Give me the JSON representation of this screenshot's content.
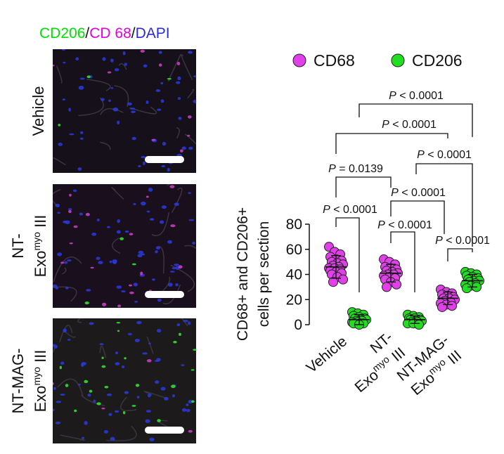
{
  "panel_title": {
    "cd206": "CD206",
    "slash1": "/",
    "cd68": "CD 68",
    "slash2": "/",
    "dapi": "DAPI"
  },
  "colors": {
    "cd206": "#00e000",
    "cd68": "#e000e0",
    "dapi": "#2a2ad8",
    "cd68_marker": "#e040e8",
    "cd206_marker": "#22dd22"
  },
  "images": [
    {
      "label_lines": [
        "Vehicle"
      ]
    },
    {
      "label_lines": [
        "NT-",
        "Exo",
        "myo",
        " III"
      ]
    },
    {
      "label_lines": [
        "NT-MAG-",
        "Exo",
        "myo",
        " III"
      ]
    }
  ],
  "chart_data": {
    "type": "scatter",
    "ylabel": [
      "CD68+ and CD206+",
      "cells per section"
    ],
    "ylim": [
      0,
      80
    ],
    "yticks": [
      0,
      20,
      40,
      60,
      80
    ],
    "categories": [
      {
        "lines": [
          "Vehicle"
        ]
      },
      {
        "lines": [
          "NT-",
          "Exo",
          "myo",
          " III"
        ]
      },
      {
        "lines": [
          "NT-MAG-",
          "Exo",
          "myo",
          " III"
        ]
      }
    ],
    "legend": [
      "CD68",
      "CD206"
    ],
    "series": [
      {
        "name": "CD68",
        "means": [
          46,
          41,
          21
        ],
        "sds": [
          9,
          7,
          5
        ],
        "values": [
          [
            62,
            58,
            56,
            54,
            52,
            51,
            50,
            49,
            48,
            47,
            46,
            45,
            45,
            44,
            43,
            42,
            41,
            40,
            38,
            36,
            34
          ],
          [
            52,
            50,
            48,
            46,
            45,
            44,
            43,
            42,
            41,
            40,
            40,
            39,
            38,
            37,
            36,
            34,
            32,
            30
          ],
          [
            28,
            26,
            25,
            24,
            23,
            22,
            21,
            21,
            20,
            19,
            18,
            17,
            16,
            15,
            14
          ]
        ]
      },
      {
        "name": "CD206",
        "means": [
          4,
          4,
          35
        ],
        "sds": [
          4,
          3,
          5
        ],
        "values": [
          [
            10,
            9,
            8,
            7,
            6,
            5,
            5,
            4,
            4,
            3,
            3,
            2,
            2,
            1,
            1,
            0
          ],
          [
            8,
            7,
            6,
            5,
            5,
            4,
            4,
            3,
            3,
            2,
            2,
            1,
            1,
            0
          ],
          [
            42,
            41,
            40,
            39,
            38,
            37,
            36,
            35,
            35,
            34,
            33,
            32,
            31,
            30,
            29
          ]
        ]
      }
    ],
    "comparisons": [
      {
        "text": "P < 0.0001",
        "italic": "P",
        "rest": " < 0.0001",
        "from": [
          0,
          0
        ],
        "to": [
          2,
          1
        ]
      },
      {
        "text": "P < 0.0001",
        "italic": "P",
        "rest": " < 0.0001",
        "from": [
          0,
          0
        ],
        "to": [
          2,
          0
        ]
      },
      {
        "text": "P < 0.0001",
        "italic": "P",
        "rest": " < 0.0001",
        "from": [
          1,
          0
        ],
        "to": [
          2,
          1
        ]
      },
      {
        "text": "P = 0.0139",
        "italic": "P",
        "rest": " = 0.0139",
        "from": [
          0,
          0
        ],
        "to": [
          1,
          0
        ]
      },
      {
        "text": "P < 0.0001",
        "italic": "P",
        "rest": " < 0.0001",
        "from": [
          1,
          0
        ],
        "to": [
          2,
          0
        ]
      },
      {
        "text": "P < 0.0001",
        "italic": "P",
        "rest": " < 0.0001",
        "from": [
          0,
          0
        ],
        "to": [
          0,
          1
        ]
      },
      {
        "text": "P < 0.0001",
        "italic": "P",
        "rest": " < 0.0001",
        "from": [
          1,
          0
        ],
        "to": [
          1,
          1
        ]
      },
      {
        "text": "P < 0.0001",
        "italic": "P",
        "rest": " < 0.0001",
        "from": [
          2,
          0
        ],
        "to": [
          2,
          1
        ]
      }
    ]
  }
}
